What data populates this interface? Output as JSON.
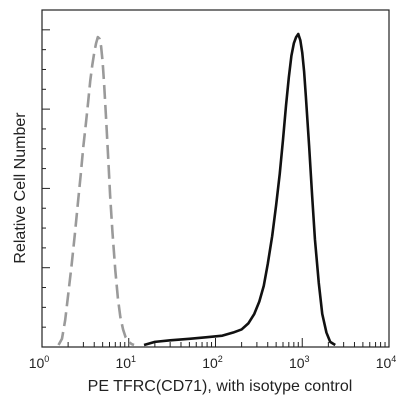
{
  "chart_data": {
    "type": "line",
    "xlabel": "PE  TFRC(CD71),  with isotype control",
    "ylabel": "Relative Cell Number",
    "x_scale": "log",
    "xlim": [
      1,
      10000
    ],
    "ylim": [
      0,
      1
    ],
    "x_ticks": [
      {
        "base": "10",
        "exp": "0"
      },
      {
        "base": "10",
        "exp": "1"
      },
      {
        "base": "10",
        "exp": "2"
      },
      {
        "base": "10",
        "exp": "3"
      },
      {
        "base": "10",
        "exp": "4"
      }
    ],
    "grid": false,
    "legend": "none",
    "series": [
      {
        "role": "isotype control",
        "color": "#9a9a9a",
        "style": "dashed",
        "x": [
          1.55,
          1.7,
          1.85,
          2.0,
          2.2,
          2.4,
          2.6,
          2.8,
          3.0,
          3.2,
          3.4,
          3.6,
          3.8,
          4.0,
          4.2,
          4.4,
          4.6,
          4.8,
          5.0,
          5.2,
          5.5,
          5.8,
          6.1,
          6.5,
          7.0,
          7.5,
          8.0,
          8.6,
          9.2,
          10.0,
          10.8,
          11.5
        ],
        "y": [
          0.0,
          0.02,
          0.08,
          0.16,
          0.26,
          0.36,
          0.46,
          0.55,
          0.64,
          0.71,
          0.78,
          0.85,
          0.9,
          0.94,
          0.97,
          0.99,
          0.985,
          0.96,
          0.91,
          0.84,
          0.72,
          0.6,
          0.48,
          0.36,
          0.24,
          0.15,
          0.09,
          0.05,
          0.025,
          0.01,
          0.003,
          0.0
        ]
      },
      {
        "role": "TFRC (CD71)",
        "color": "#111111",
        "style": "solid",
        "x": [
          15,
          20,
          30,
          50,
          80,
          120,
          160,
          200,
          240,
          280,
          320,
          360,
          400,
          450,
          500,
          550,
          600,
          650,
          700,
          750,
          800,
          850,
          900,
          950,
          1000,
          1050,
          1100,
          1200,
          1300,
          1400,
          1550,
          1700,
          1900,
          2100,
          2400
        ],
        "y": [
          0.0,
          0.01,
          0.015,
          0.02,
          0.025,
          0.03,
          0.04,
          0.05,
          0.07,
          0.1,
          0.14,
          0.19,
          0.26,
          0.35,
          0.45,
          0.55,
          0.66,
          0.77,
          0.86,
          0.93,
          0.97,
          0.99,
          1.0,
          0.98,
          0.94,
          0.88,
          0.8,
          0.64,
          0.48,
          0.34,
          0.2,
          0.1,
          0.04,
          0.01,
          0.0
        ]
      }
    ]
  }
}
